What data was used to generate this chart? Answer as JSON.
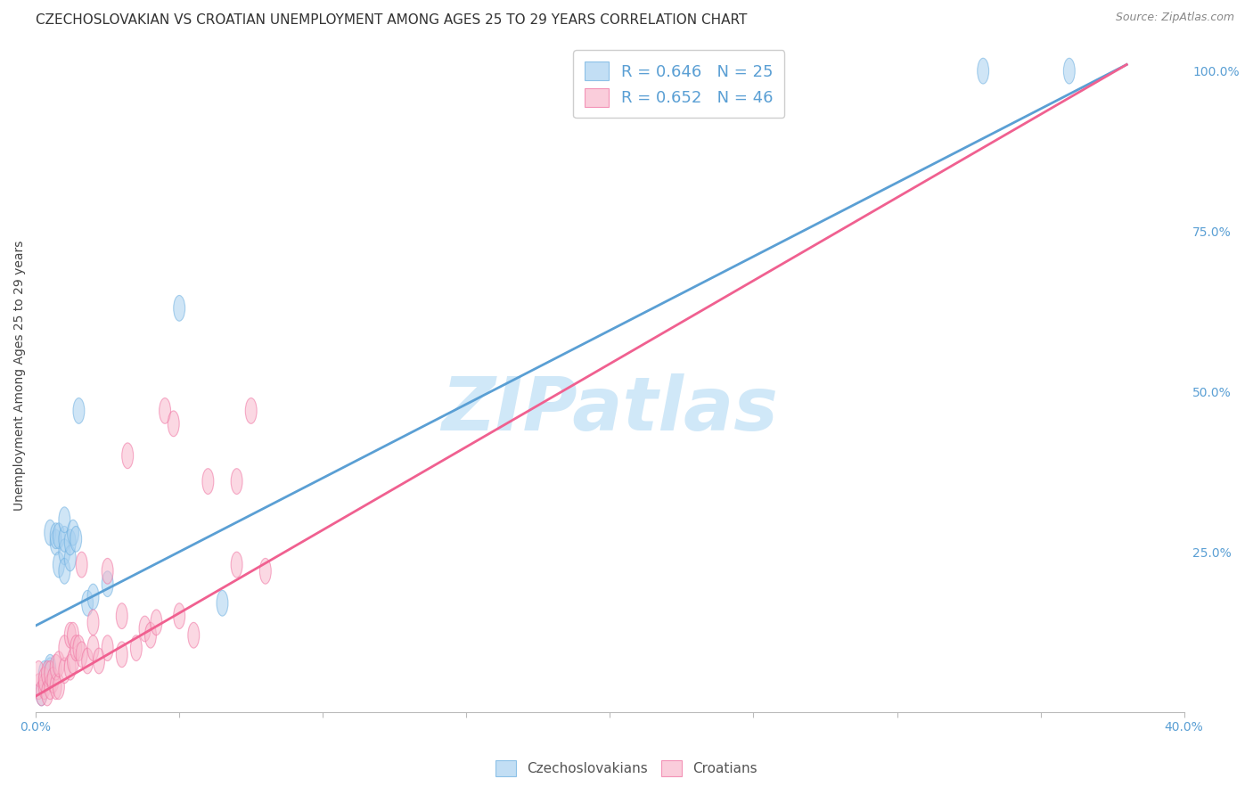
{
  "title": "CZECHOSLOVAKIAN VS CROATIAN UNEMPLOYMENT AMONG AGES 25 TO 29 YEARS CORRELATION CHART",
  "source": "Source: ZipAtlas.com",
  "ylabel": "Unemployment Among Ages 25 to 29 years",
  "xlim": [
    0.0,
    0.4
  ],
  "ylim": [
    0.0,
    1.05
  ],
  "xticks": [
    0.0,
    0.05,
    0.1,
    0.15,
    0.2,
    0.25,
    0.3,
    0.35,
    0.4
  ],
  "yticks_right": [
    0.0,
    0.25,
    0.5,
    0.75,
    1.0
  ],
  "yticklabels_right": [
    "",
    "25.0%",
    "50.0%",
    "75.0%",
    "100.0%"
  ],
  "blue_color": "#a8d0f0",
  "pink_color": "#f8b8cc",
  "blue_edge_color": "#6aaee0",
  "pink_edge_color": "#f070a0",
  "blue_line_color": "#5a9fd4",
  "pink_line_color": "#f06090",
  "legend_text_color": "#5a9fd4",
  "watermark": "ZIPatlas",
  "watermark_color": "#d0e8f8",
  "legend1_label": "R = 0.646   N = 25",
  "legend2_label": "R = 0.652   N = 46",
  "blue_line_x0": 0.0,
  "blue_line_y0": 0.135,
  "blue_line_x1": 0.38,
  "blue_line_y1": 1.01,
  "pink_line_x0": 0.0,
  "pink_line_y0": 0.025,
  "pink_line_x1": 0.38,
  "pink_line_y1": 1.01,
  "blue_scatter_x": [
    0.002,
    0.003,
    0.005,
    0.005,
    0.005,
    0.007,
    0.007,
    0.008,
    0.008,
    0.01,
    0.01,
    0.01,
    0.01,
    0.012,
    0.012,
    0.013,
    0.014,
    0.015,
    0.018,
    0.02,
    0.025,
    0.05,
    0.065,
    0.33,
    0.36
  ],
  "blue_scatter_y": [
    0.03,
    0.06,
    0.065,
    0.07,
    0.28,
    0.265,
    0.275,
    0.23,
    0.275,
    0.25,
    0.27,
    0.3,
    0.22,
    0.24,
    0.265,
    0.28,
    0.27,
    0.47,
    0.17,
    0.18,
    0.2,
    0.63,
    0.17,
    1.0,
    1.0
  ],
  "pink_scatter_x": [
    0.001,
    0.001,
    0.002,
    0.003,
    0.003,
    0.004,
    0.004,
    0.005,
    0.005,
    0.006,
    0.007,
    0.007,
    0.008,
    0.008,
    0.01,
    0.01,
    0.012,
    0.012,
    0.013,
    0.013,
    0.014,
    0.015,
    0.016,
    0.016,
    0.018,
    0.02,
    0.02,
    0.022,
    0.025,
    0.025,
    0.03,
    0.03,
    0.032,
    0.035,
    0.038,
    0.04,
    0.042,
    0.045,
    0.048,
    0.05,
    0.055,
    0.06,
    0.07,
    0.07,
    0.075,
    0.08
  ],
  "pink_scatter_y": [
    0.04,
    0.06,
    0.03,
    0.04,
    0.05,
    0.03,
    0.06,
    0.04,
    0.06,
    0.05,
    0.04,
    0.07,
    0.04,
    0.075,
    0.065,
    0.1,
    0.07,
    0.12,
    0.08,
    0.12,
    0.1,
    0.1,
    0.09,
    0.23,
    0.08,
    0.1,
    0.14,
    0.08,
    0.22,
    0.1,
    0.09,
    0.15,
    0.4,
    0.1,
    0.13,
    0.12,
    0.14,
    0.47,
    0.45,
    0.15,
    0.12,
    0.36,
    0.36,
    0.23,
    0.47,
    0.22
  ],
  "background_color": "#ffffff",
  "grid_color": "#e0e0e0",
  "title_fontsize": 11,
  "axis_label_fontsize": 10,
  "tick_fontsize": 10,
  "legend_fontsize": 13,
  "watermark_fontsize": 60,
  "scatter_alpha": 0.55,
  "scatter_size": 120
}
